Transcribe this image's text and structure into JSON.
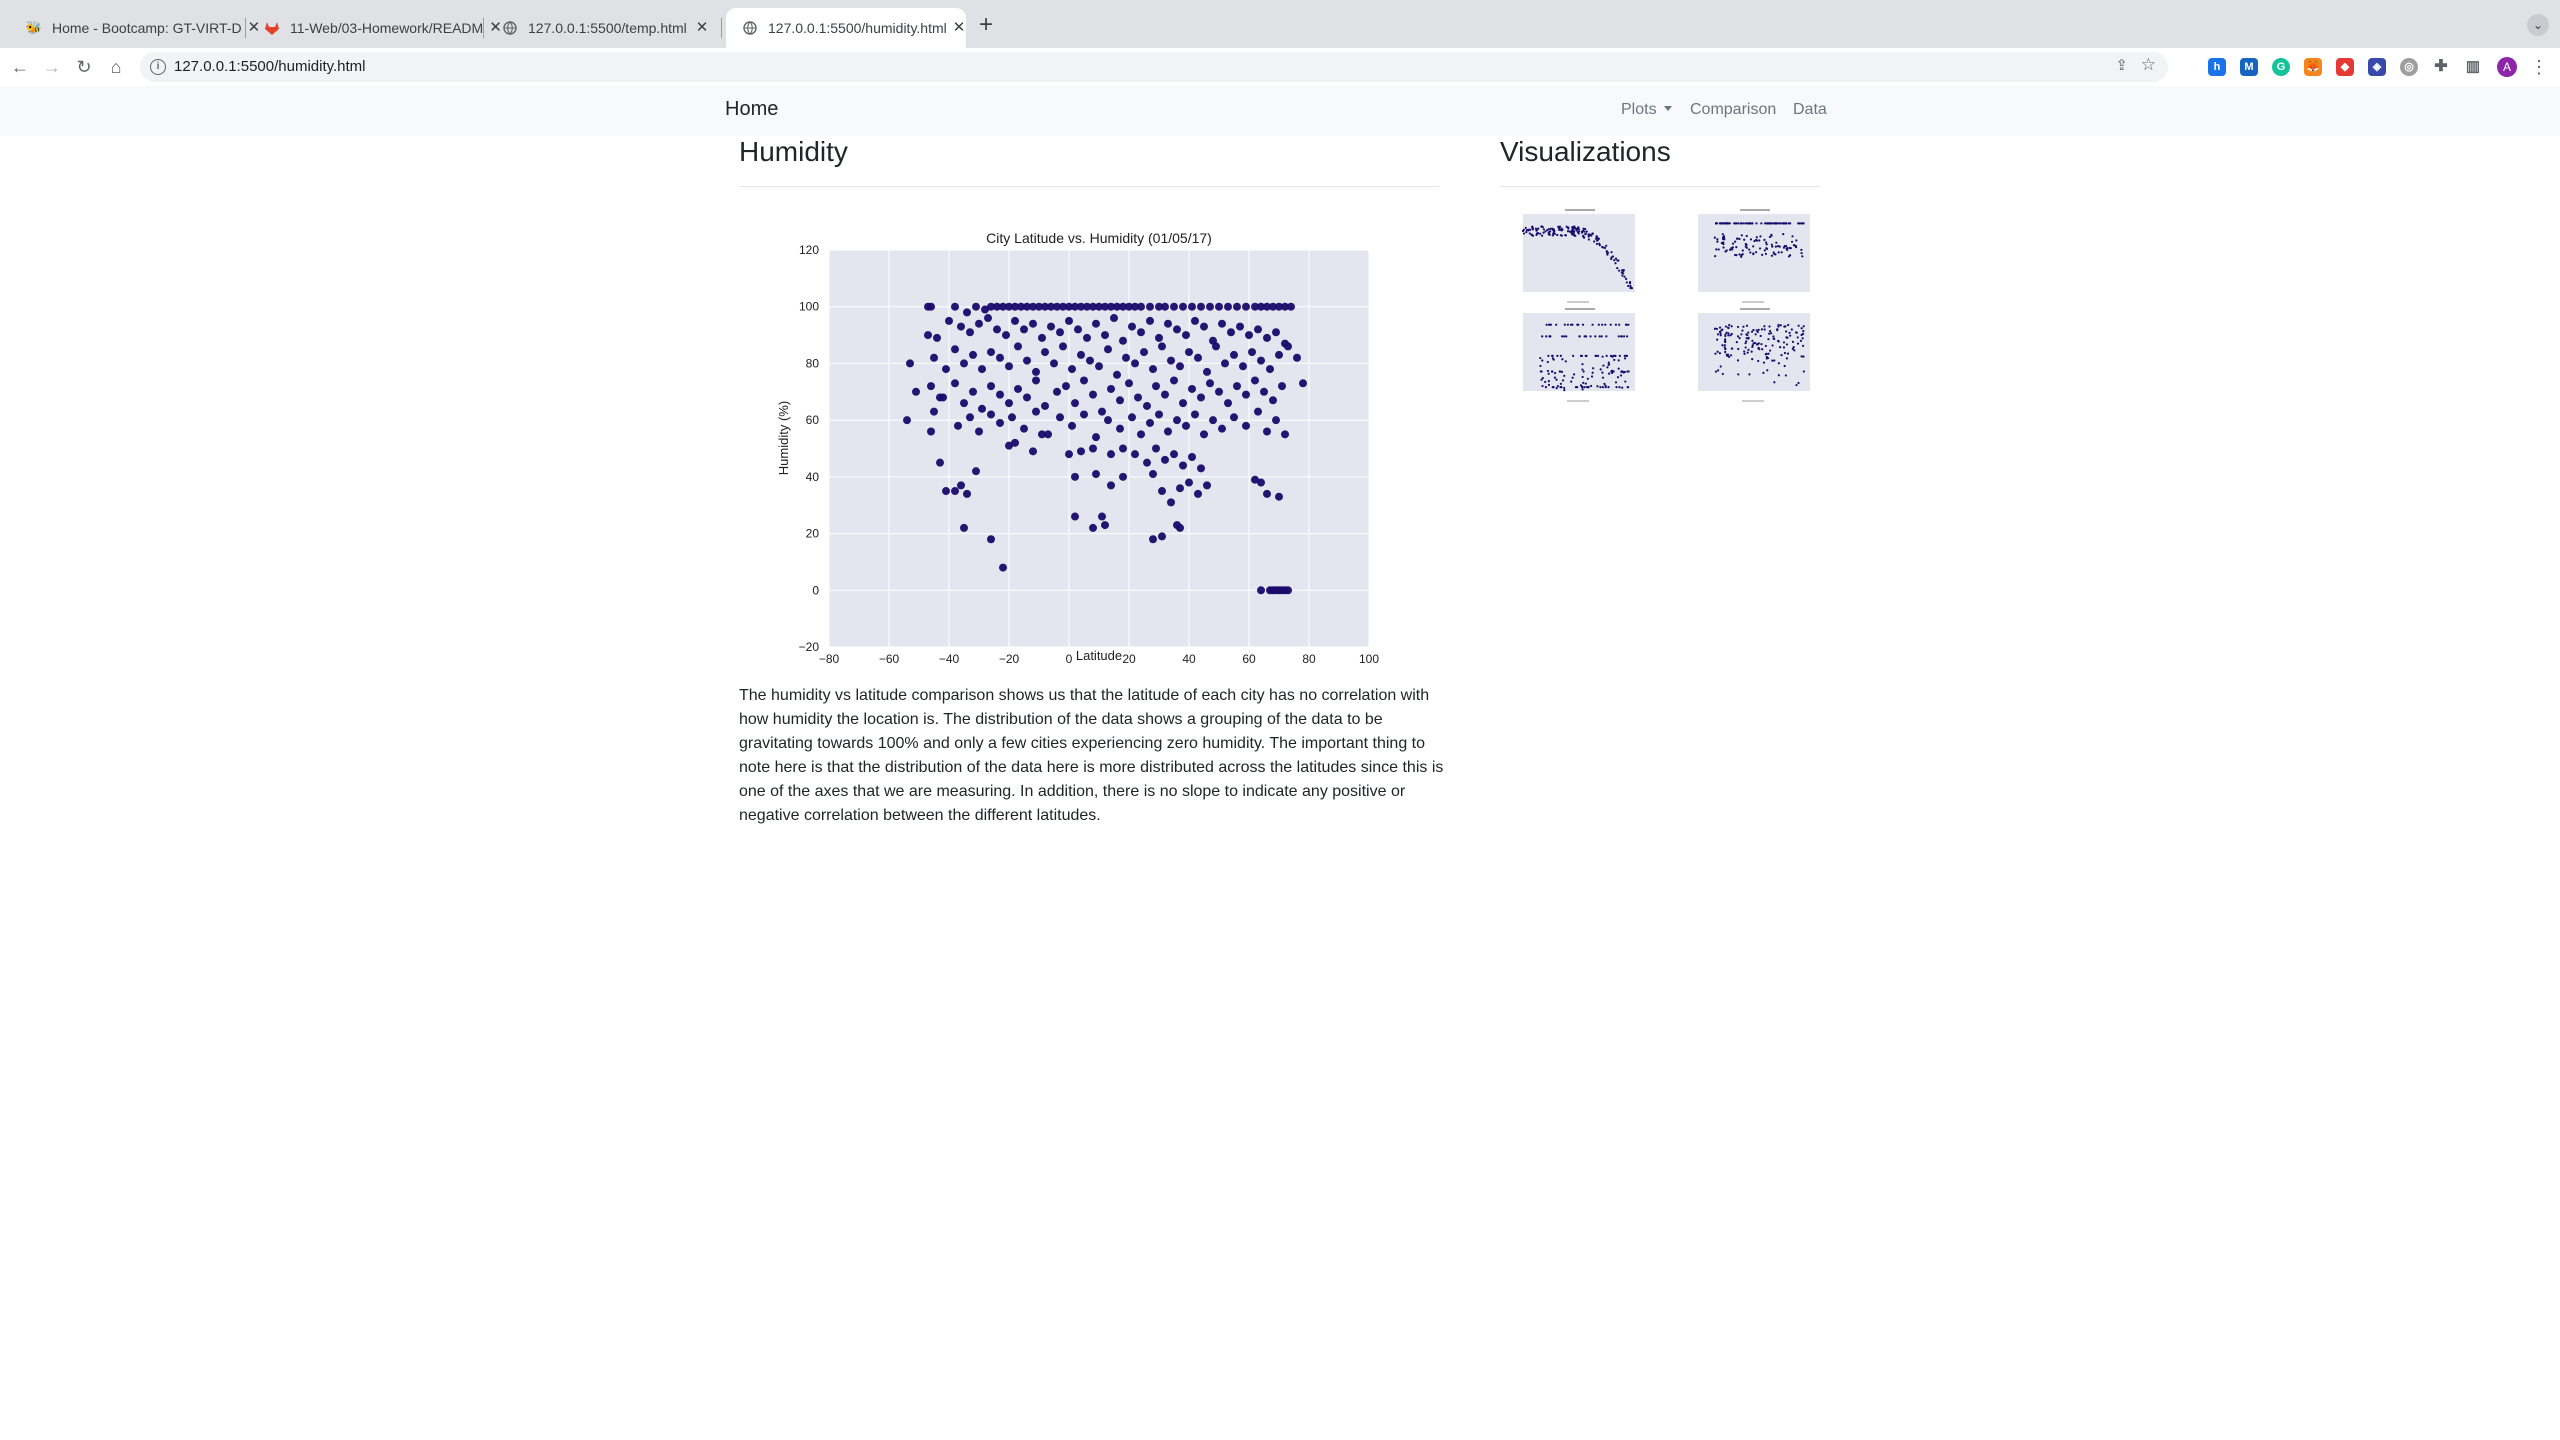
{
  "browser": {
    "tabs": [
      {
        "title": "Home - Bootcamp: GT-VIRT-D",
        "favicon": "bootcamp-icon",
        "active": false
      },
      {
        "title": "11-Web/03-Homework/READM",
        "favicon": "gitlab-icon",
        "active": false
      },
      {
        "title": "127.0.0.1:5500/temp.html",
        "favicon": "globe-icon",
        "active": false
      },
      {
        "title": "127.0.0.1:5500/humidity.html",
        "favicon": "globe-icon",
        "active": true
      }
    ],
    "url": "127.0.0.1:5500/humidity.html",
    "profile_initial": "A"
  },
  "navbar": {
    "brand": "Home",
    "links": [
      {
        "label": "Plots",
        "dropdown": true
      },
      {
        "label": "Comparison",
        "dropdown": false
      },
      {
        "label": "Data",
        "dropdown": false
      }
    ]
  },
  "main": {
    "heading": "Humidity",
    "description": "The humidity vs latitude comparison shows us that the latitude of each city has no correlation with how humidity the location is. The distribution of the data shows a grouping of the data to be gravitating towards 100% and only a few cities experiencing zero humidity. The important thing to note here is that the distribution of the data here is more distributed across the latitudes since this is one of the axes that we are measuring. In addition, there is no slope to indicate any positive or negative correlation between the different latitudes."
  },
  "sidebar": {
    "heading": "Visualizations",
    "thumbnails": [
      {
        "name": "temperature-plot-thumbnail",
        "kind": "temperature"
      },
      {
        "name": "humidity-plot-thumbnail",
        "kind": "humidity"
      },
      {
        "name": "cloudiness-plot-thumbnail",
        "kind": "cloudiness"
      },
      {
        "name": "wind-speed-plot-thumbnail",
        "kind": "wind"
      }
    ]
  },
  "colors": {
    "marker": "#1a0a6b",
    "plot_background": "#e5e5f0",
    "grid": "#ffffff"
  },
  "chart_data": {
    "type": "scatter",
    "title": "City Latitude vs. Humidity (01/05/17)",
    "xlabel": "Latitude",
    "ylabel": "Humidity (%)",
    "xlim": [
      -80,
      100
    ],
    "ylim": [
      -20,
      120
    ],
    "xticks": [
      -80,
      -60,
      -40,
      -20,
      0,
      20,
      40,
      60,
      80,
      100
    ],
    "yticks": [
      -20,
      0,
      20,
      40,
      60,
      80,
      100,
      120
    ],
    "grid": true,
    "marker_color": "#1a0a6b",
    "points": [
      [
        -47,
        100
      ],
      [
        -46,
        100
      ],
      [
        -38,
        100
      ],
      [
        -34,
        98
      ],
      [
        -31,
        100
      ],
      [
        -28,
        99
      ],
      [
        -26,
        100
      ],
      [
        -24,
        100
      ],
      [
        -22,
        100
      ],
      [
        -20,
        100
      ],
      [
        -18,
        100
      ],
      [
        -16,
        100
      ],
      [
        -14,
        100
      ],
      [
        -12,
        100
      ],
      [
        -10,
        100
      ],
      [
        -8,
        100
      ],
      [
        -6,
        100
      ],
      [
        -4,
        100
      ],
      [
        -2,
        100
      ],
      [
        0,
        100
      ],
      [
        2,
        100
      ],
      [
        4,
        100
      ],
      [
        6,
        100
      ],
      [
        8,
        100
      ],
      [
        10,
        100
      ],
      [
        12,
        100
      ],
      [
        14,
        100
      ],
      [
        16,
        100
      ],
      [
        18,
        100
      ],
      [
        20,
        100
      ],
      [
        22,
        100
      ],
      [
        24,
        100
      ],
      [
        27,
        100
      ],
      [
        30,
        100
      ],
      [
        32,
        100
      ],
      [
        35,
        100
      ],
      [
        38,
        100
      ],
      [
        41,
        100
      ],
      [
        44,
        100
      ],
      [
        47,
        100
      ],
      [
        50,
        100
      ],
      [
        53,
        100
      ],
      [
        56,
        100
      ],
      [
        59,
        100
      ],
      [
        62,
        100
      ],
      [
        64,
        100
      ],
      [
        66,
        100
      ],
      [
        68,
        100
      ],
      [
        70,
        100
      ],
      [
        72,
        100
      ],
      [
        74,
        100
      ],
      [
        -47,
        90
      ],
      [
        -44,
        89
      ],
      [
        -40,
        95
      ],
      [
        -36,
        93
      ],
      [
        -33,
        91
      ],
      [
        -30,
        94
      ],
      [
        -27,
        96
      ],
      [
        -24,
        92
      ],
      [
        -21,
        90
      ],
      [
        -18,
        95
      ],
      [
        -15,
        92
      ],
      [
        -12,
        94
      ],
      [
        -9,
        89
      ],
      [
        -6,
        93
      ],
      [
        -3,
        91
      ],
      [
        0,
        95
      ],
      [
        3,
        92
      ],
      [
        6,
        89
      ],
      [
        9,
        94
      ],
      [
        12,
        90
      ],
      [
        15,
        96
      ],
      [
        18,
        88
      ],
      [
        21,
        93
      ],
      [
        24,
        91
      ],
      [
        27,
        95
      ],
      [
        30,
        89
      ],
      [
        33,
        94
      ],
      [
        36,
        92
      ],
      [
        39,
        90
      ],
      [
        42,
        95
      ],
      [
        45,
        93
      ],
      [
        48,
        88
      ],
      [
        51,
        94
      ],
      [
        54,
        91
      ],
      [
        57,
        93
      ],
      [
        60,
        90
      ],
      [
        63,
        92
      ],
      [
        66,
        89
      ],
      [
        69,
        91
      ],
      [
        72,
        87
      ],
      [
        -53,
        80
      ],
      [
        -45,
        82
      ],
      [
        -41,
        78
      ],
      [
        -38,
        85
      ],
      [
        -35,
        80
      ],
      [
        -32,
        83
      ],
      [
        -29,
        78
      ],
      [
        -26,
        84
      ],
      [
        -23,
        82
      ],
      [
        -20,
        79
      ],
      [
        -17,
        86
      ],
      [
        -14,
        81
      ],
      [
        -11,
        77
      ],
      [
        -8,
        84
      ],
      [
        -5,
        80
      ],
      [
        -2,
        86
      ],
      [
        1,
        78
      ],
      [
        4,
        83
      ],
      [
        7,
        81
      ],
      [
        10,
        79
      ],
      [
        13,
        85
      ],
      [
        16,
        76
      ],
      [
        19,
        82
      ],
      [
        22,
        80
      ],
      [
        25,
        84
      ],
      [
        28,
        78
      ],
      [
        31,
        86
      ],
      [
        34,
        81
      ],
      [
        37,
        79
      ],
      [
        40,
        84
      ],
      [
        43,
        82
      ],
      [
        46,
        77
      ],
      [
        49,
        86
      ],
      [
        52,
        80
      ],
      [
        55,
        83
      ],
      [
        58,
        79
      ],
      [
        61,
        84
      ],
      [
        64,
        81
      ],
      [
        67,
        78
      ],
      [
        70,
        83
      ],
      [
        73,
        86
      ],
      [
        76,
        82
      ],
      [
        -51,
        70
      ],
      [
        -46,
        72
      ],
      [
        -43,
        68
      ],
      [
        -38,
        73
      ],
      [
        -35,
        66
      ],
      [
        -32,
        70
      ],
      [
        -29,
        64
      ],
      [
        -26,
        72
      ],
      [
        -23,
        69
      ],
      [
        -20,
        66
      ],
      [
        -17,
        71
      ],
      [
        -14,
        68
      ],
      [
        -11,
        74
      ],
      [
        -8,
        65
      ],
      [
        -4,
        70
      ],
      [
        -1,
        72
      ],
      [
        2,
        66
      ],
      [
        5,
        74
      ],
      [
        8,
        69
      ],
      [
        11,
        63
      ],
      [
        14,
        71
      ],
      [
        17,
        67
      ],
      [
        20,
        73
      ],
      [
        23,
        68
      ],
      [
        26,
        65
      ],
      [
        29,
        72
      ],
      [
        32,
        69
      ],
      [
        35,
        74
      ],
      [
        38,
        66
      ],
      [
        41,
        71
      ],
      [
        44,
        68
      ],
      [
        47,
        73
      ],
      [
        50,
        70
      ],
      [
        53,
        66
      ],
      [
        56,
        72
      ],
      [
        59,
        69
      ],
      [
        62,
        74
      ],
      [
        65,
        70
      ],
      [
        68,
        67
      ],
      [
        71,
        72
      ],
      [
        78,
        73
      ],
      [
        -54,
        60
      ],
      [
        -45,
        63
      ],
      [
        -42,
        68
      ],
      [
        -37,
        58
      ],
      [
        -33,
        61
      ],
      [
        -30,
        56
      ],
      [
        -26,
        62
      ],
      [
        -23,
        59
      ],
      [
        -19,
        61
      ],
      [
        -15,
        57
      ],
      [
        -11,
        63
      ],
      [
        -7,
        55
      ],
      [
        -3,
        61
      ],
      [
        1,
        58
      ],
      [
        5,
        62
      ],
      [
        9,
        54
      ],
      [
        13,
        60
      ],
      [
        17,
        57
      ],
      [
        21,
        61
      ],
      [
        24,
        55
      ],
      [
        27,
        59
      ],
      [
        30,
        62
      ],
      [
        33,
        56
      ],
      [
        36,
        60
      ],
      [
        39,
        58
      ],
      [
        42,
        62
      ],
      [
        45,
        55
      ],
      [
        48,
        60
      ],
      [
        51,
        57
      ],
      [
        55,
        61
      ],
      [
        59,
        58
      ],
      [
        63,
        63
      ],
      [
        66,
        56
      ],
      [
        69,
        60
      ],
      [
        72,
        55
      ],
      [
        -46,
        56
      ],
      [
        -20,
        51
      ],
      [
        -18,
        52
      ],
      [
        -12,
        49
      ],
      [
        -9,
        55
      ],
      [
        0,
        48
      ],
      [
        4,
        49
      ],
      [
        8,
        50
      ],
      [
        14,
        48
      ],
      [
        18,
        50
      ],
      [
        22,
        48
      ],
      [
        26,
        45
      ],
      [
        29,
        50
      ],
      [
        32,
        46
      ],
      [
        35,
        48
      ],
      [
        38,
        44
      ],
      [
        41,
        47
      ],
      [
        44,
        43
      ],
      [
        -43,
        45
      ],
      [
        -41,
        35
      ],
      [
        -38,
        35
      ],
      [
        -36,
        37
      ],
      [
        -34,
        34
      ],
      [
        -31,
        42
      ],
      [
        2,
        40
      ],
      [
        9,
        41
      ],
      [
        14,
        37
      ],
      [
        18,
        40
      ],
      [
        28,
        41
      ],
      [
        31,
        35
      ],
      [
        34,
        31
      ],
      [
        37,
        36
      ],
      [
        40,
        38
      ],
      [
        43,
        34
      ],
      [
        46,
        37
      ],
      [
        62,
        39
      ],
      [
        64,
        38
      ],
      [
        66,
        34
      ],
      [
        70,
        33
      ],
      [
        -35,
        22
      ],
      [
        -26,
        18
      ],
      [
        -22,
        8
      ],
      [
        2,
        26
      ],
      [
        11,
        26
      ],
      [
        8,
        22
      ],
      [
        12,
        23
      ],
      [
        28,
        18
      ],
      [
        31,
        19
      ],
      [
        36,
        23
      ],
      [
        37,
        22
      ],
      [
        64,
        0
      ],
      [
        67,
        0
      ],
      [
        68,
        0
      ],
      [
        69,
        0
      ],
      [
        70,
        0
      ],
      [
        71,
        0
      ],
      [
        72,
        0
      ],
      [
        73,
        0
      ]
    ]
  }
}
